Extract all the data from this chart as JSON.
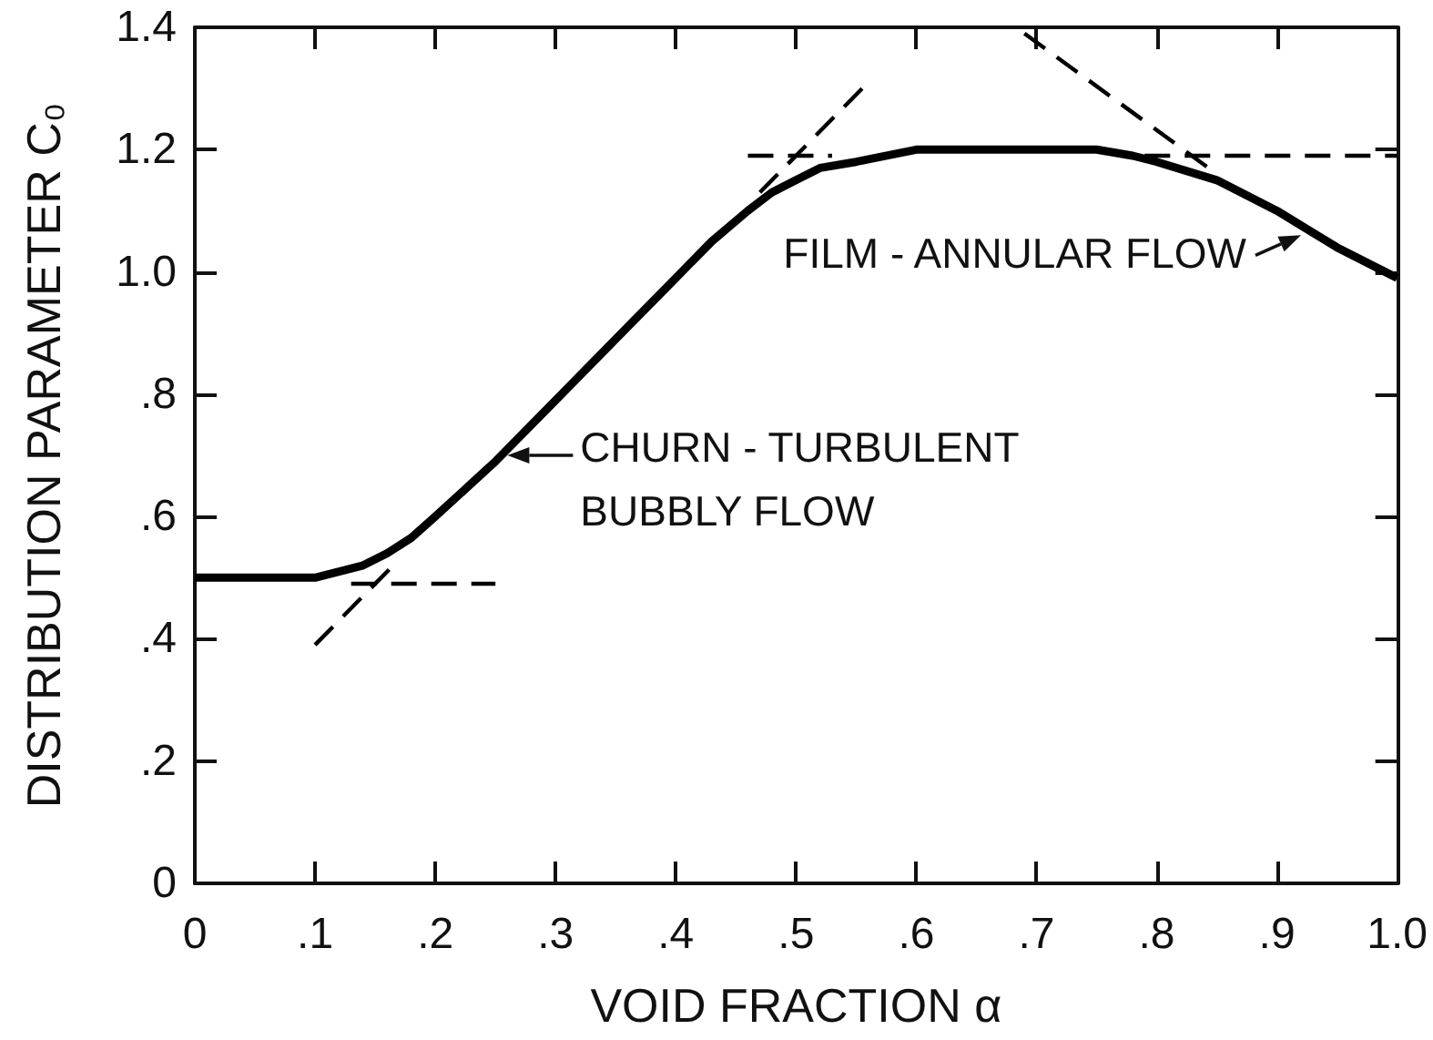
{
  "chart_data": {
    "type": "line",
    "xlabel": "VOID FRACTION α",
    "ylabel": "DISTRIBUTION PARAMETER C₀",
    "xlim": [
      0,
      1
    ],
    "xticks": [
      0,
      {
        "value": 0.1,
        "label": ".1"
      },
      {
        "value": 0.2,
        "label": ".2"
      },
      {
        "value": 0.3,
        "label": ".3"
      },
      {
        "value": 0.4,
        "label": ".4"
      },
      {
        "value": 0.5,
        "label": ".5"
      },
      {
        "value": 0.6,
        "label": ".6"
      },
      {
        "value": 0.7,
        "label": ".7"
      },
      {
        "value": 0.8,
        "label": ".8"
      },
      {
        "value": 0.9,
        "label": ".9"
      },
      {
        "value": 1,
        "label": "1.0"
      }
    ],
    "ylim": [
      0,
      1.4
    ],
    "yticks": [
      0,
      {
        "value": 0.2,
        "label": ".2"
      },
      {
        "value": 0.4,
        "label": ".4"
      },
      {
        "value": 0.6,
        "label": ".6"
      },
      {
        "value": 0.8,
        "label": ".8"
      },
      {
        "value": 1,
        "label": "1.0"
      },
      1.2,
      1.4
    ],
    "marker": "none",
    "series": [
      {
        "color": "#000000",
        "line_style": "solid",
        "x": [
          0,
          0.05,
          0.1,
          0.12,
          0.14,
          0.16,
          0.18,
          0.2,
          0.25,
          0.3,
          0.35,
          0.4,
          0.43,
          0.46,
          0.48,
          0.5,
          0.52,
          0.55,
          0.6,
          0.65,
          0.7,
          0.75,
          0.78,
          0.8,
          0.85,
          0.9,
          0.95,
          1
        ],
        "values": [
          0.5,
          0.5,
          0.5,
          0.51,
          0.52,
          0.54,
          0.565,
          0.6,
          0.69,
          0.79,
          0.89,
          0.99,
          1.05,
          1.1,
          1.13,
          1.15,
          1.17,
          1.18,
          1.2,
          1.2,
          1.2,
          1.2,
          1.19,
          1.18,
          1.15,
          1.1,
          1.04,
          0.99
        ]
      },
      {
        "color": "#000000",
        "line_style": "dashed",
        "x": [
          0.13,
          0.25
        ],
        "values": [
          0.49,
          0.49
        ]
      },
      {
        "color": "#000000",
        "line_style": "dashed",
        "x": [
          0.1,
          0.17
        ],
        "values": [
          0.39,
          0.53
        ]
      },
      {
        "color": "#000000",
        "line_style": "dashed",
        "x": [
          0.46,
          0.53
        ],
        "values": [
          1.19,
          1.19
        ]
      },
      {
        "color": "#000000",
        "line_style": "dashed",
        "x": [
          0.47,
          0.56
        ],
        "values": [
          1.13,
          1.31
        ]
      },
      {
        "color": "#000000",
        "line_style": "dashed",
        "x": [
          0.79,
          1
        ],
        "values": [
          1.19,
          1.19
        ]
      },
      {
        "color": "#000000",
        "line_style": "dashed",
        "x": [
          0.69,
          0.85
        ],
        "values": [
          1.39,
          1.16
        ]
      }
    ],
    "annotations": [
      {
        "text": "CHURN - TURBULENT BUBBLY FLOW",
        "x": 0.26,
        "y": 0.7
      },
      {
        "text": "FILM - ANNULAR FLOW",
        "x": 0.92,
        "y": 1.06
      }
    ]
  }
}
